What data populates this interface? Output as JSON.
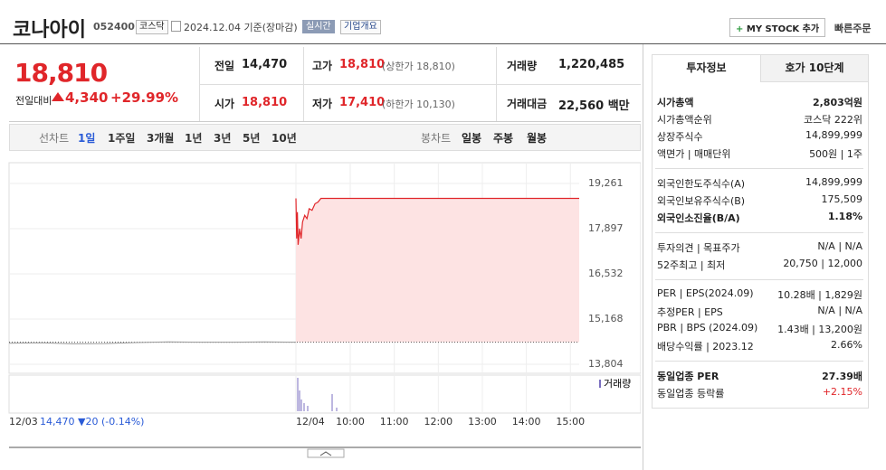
{
  "header": {
    "name": "코나아이",
    "code": "052400",
    "market": "코스닥",
    "date": "2024.12.04 기준(장마감)",
    "realtime": "실시간",
    "overview": "기업개요",
    "mystock": "MY STOCK 추가",
    "quick_order": "빠른주문"
  },
  "quote": {
    "price": "18,810",
    "change_label": "전일대비",
    "change": "4,340",
    "change_pct": "+29.99%",
    "stats": [
      {
        "label": "전일",
        "value": "14,470"
      },
      {
        "label": "고가",
        "value": "18,810",
        "note": "(상한가 18,810)",
        "color": "#e0262a"
      },
      {
        "label": "거래량",
        "value": "1,220,485"
      },
      {
        "label": "시가",
        "value": "18,810",
        "color": "#e0262a"
      },
      {
        "label": "저가",
        "value": "17,410",
        "note": "(하한가 10,130)",
        "color": "#e0262a"
      },
      {
        "label": "거래대금",
        "value": "22,560 백만"
      }
    ]
  },
  "tabs": {
    "line_label": "선차트",
    "line": [
      "1일",
      "1주일",
      "3개월",
      "1년",
      "3년",
      "5년",
      "10년"
    ],
    "candle_label": "봉차트",
    "candle": [
      "일봉",
      "주봉",
      "월봉"
    ]
  },
  "chart_data": {
    "type": "line",
    "color": "#e0262a",
    "fill": "#fde3e3",
    "prev_color": "#9a9a9a",
    "ylim": [
      13804,
      19261
    ],
    "yticks": [
      {
        "value": 19261,
        "label": "19,261"
      },
      {
        "value": 17897,
        "label": "17,897"
      },
      {
        "value": 16532,
        "label": "16,532"
      },
      {
        "value": 15168,
        "label": "15,168"
      },
      {
        "value": 13804,
        "label": "13,804"
      }
    ],
    "xlim": [
      -14,
      372
    ],
    "xticks": [
      {
        "value": -14,
        "label": "12/04"
      },
      {
        "value": 60,
        "label": "10:00"
      },
      {
        "value": 120,
        "label": "11:00"
      },
      {
        "value": 180,
        "label": "12:00"
      },
      {
        "value": 240,
        "label": "13:00"
      },
      {
        "value": 300,
        "label": "14:00"
      },
      {
        "value": 360,
        "label": "15:00"
      }
    ],
    "x": [
      -14,
      -13,
      -12,
      -11,
      -9,
      -7,
      -5,
      -2,
      1,
      4,
      8,
      12,
      16,
      20,
      60,
      180,
      300,
      372
    ],
    "values": [
      18810,
      17600,
      18400,
      17410,
      17900,
      17600,
      18100,
      18300,
      18200,
      18500,
      18450,
      18650,
      18700,
      18810,
      18810,
      18810,
      18810,
      18810
    ],
    "baseline": 14470,
    "prev_label": "12/03",
    "prev_summary": "14,470 ▼20 (-0.14%)",
    "prev_values": [
      14440,
      14450,
      14420,
      14430,
      14460,
      14480,
      14470,
      14470,
      14480,
      14470
    ],
    "volume_label": "거래량"
  },
  "info": {
    "tabs": [
      "투자정보",
      "호가 10단계"
    ],
    "groups": [
      [
        {
          "label": "시가총액",
          "value": "2,803억원",
          "bold": true
        },
        {
          "label": "시가총액순위",
          "value": "코스닥 222위"
        },
        {
          "label": "상장주식수",
          "value": "14,899,999"
        },
        {
          "label": "액면가 | 매매단위",
          "value": "500원 | 1주"
        }
      ],
      [
        {
          "label": "외국인한도주식수(A)",
          "value": "14,899,999"
        },
        {
          "label": "외국인보유주식수(B)",
          "value": "175,509"
        },
        {
          "label": "외국인소진율(B/A)",
          "value": "1.18%",
          "bold": true
        }
      ],
      [
        {
          "label": "투자의견 | 목표주가",
          "value": "N/A | N/A"
        },
        {
          "label": "52주최고 | 최저",
          "value": "20,750 | 12,000"
        }
      ],
      [
        {
          "label": "PER | EPS(2024.09)",
          "value": "10.28배 | 1,829원"
        },
        {
          "label": "추정PER | EPS",
          "value": "N/A | N/A"
        },
        {
          "label": "PBR | BPS (2024.09)",
          "value": "1.43배 | 13,200원"
        },
        {
          "label": "배당수익률 | 2023.12",
          "value": "2.66%"
        }
      ],
      [
        {
          "label": "동일업종 PER",
          "value": "27.39배",
          "bold": true
        },
        {
          "label": "동일업종 등락률",
          "value": "+2.15%",
          "color": "#e0262a"
        }
      ]
    ]
  }
}
